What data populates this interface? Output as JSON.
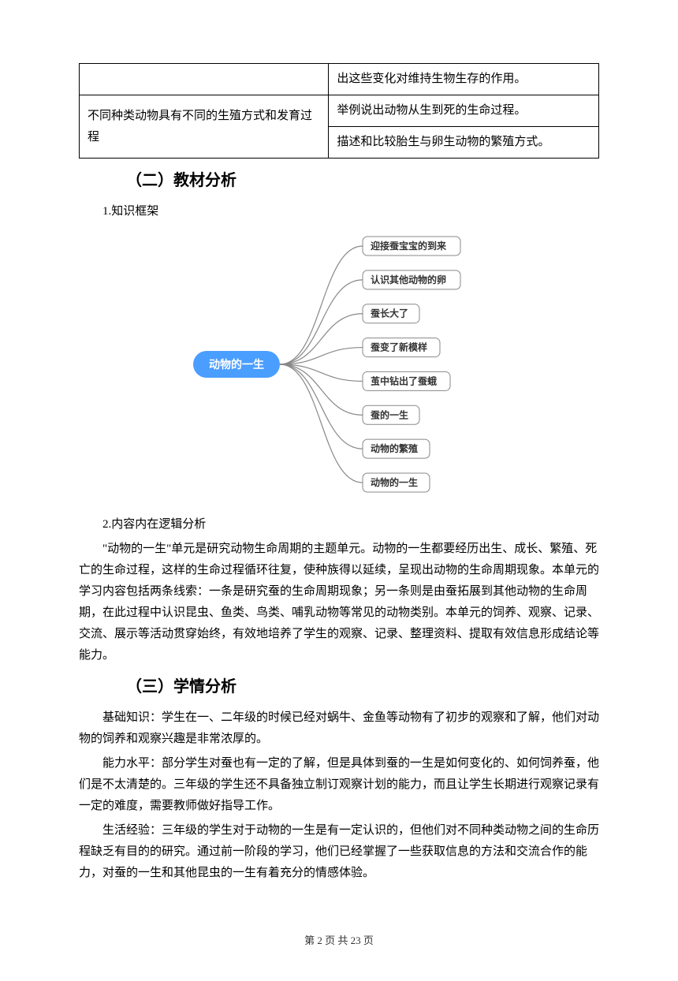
{
  "table": {
    "rows": [
      {
        "left": "",
        "right": "出这些变化对维持生物生存的作用。"
      },
      {
        "left": "不同种类动物具有不同的生殖方式和发育过程",
        "rowspan": 2,
        "right": "举例说出动物从生到死的生命过程。"
      },
      {
        "right": "描述和比较胎生与卵生动物的繁殖方式。"
      }
    ]
  },
  "section2": {
    "heading": "（二）教材分析",
    "item1": "1.知识框架",
    "item2": "2.内容内在逻辑分析",
    "para": "\"动物的一生\"单元是研究动物生命周期的主题单元。动物的一生都要经历出生、成长、繁殖、死亡的生命过程，这样的生命过程循环往复，使种族得以延续，呈现出动物的生命周期现象。本单元的学习内容包括两条线索：一条是研究蚕的生命周期现象；另一条则是由蚕拓展到其他动物的生命周期，在此过程中认识昆虫、鱼类、鸟类、哺乳动物等常见的动物类别。本单元的饲养、观察、记录、交流、展示等活动贯穿始终，有效地培养了学生的观察、记录、整理资料、提取有效信息形成结论等能力。"
  },
  "mindmap": {
    "center": {
      "label": "动物的一生",
      "bg": "#4a9eff",
      "color": "#ffffff"
    },
    "nodes": [
      "迎接蚕宝宝的到来",
      "认识其他动物的卵",
      "蚕长大了",
      "蚕变了新模样",
      "茧中钻出了蚕蛾",
      "蚕的一生",
      "动物的繁殖",
      "动物的一生"
    ],
    "node_style": {
      "bg": "#ffffff",
      "border": "#888888",
      "color": "#333333"
    },
    "line_color": "#888888"
  },
  "section3": {
    "heading": "（三）学情分析",
    "p1": "基础知识：学生在一、二年级的时候已经对蜗牛、金鱼等动物有了初步的观察和了解，他们对动物的饲养和观察兴趣是非常浓厚的。",
    "p2": "能力水平：部分学生对蚕也有一定的了解，但是具体到蚕的一生是如何变化的、如何饲养蚕，他们是不太清楚的。三年级的学生还不具备独立制订观察计划的能力，而且让学生长期进行观察记录有一定的难度，需要教师做好指导工作。",
    "p3": "生活经验：三年级的学生对于动物的一生是有一定认识的，但他们对不同种类动物之间的生命历程缺乏有目的的研究。通过前一阶段的学习，他们已经掌握了一些获取信息的方法和交流合作的能力，对蚕的一生和其他昆虫的一生有着充分的情感体验。"
  },
  "footer": {
    "page": "第 2 页 共 23 页"
  }
}
